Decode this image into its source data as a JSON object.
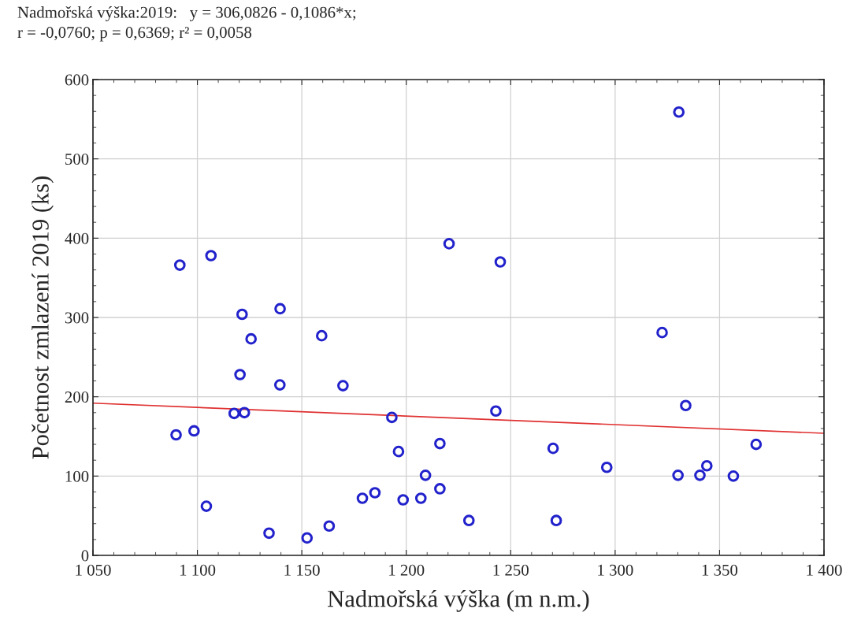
{
  "chart_data": {
    "type": "scatter",
    "title": "Nadmořská výška:2019:   y = 306,0826 - 0,1086*x;\nr = -0,0760; p = 0,6369; r² = 0,0058",
    "xlabel": "Nadmořská výška (m n.m.)",
    "ylabel": "Početnost zmlazení 2019 (ks)",
    "series": [
      {
        "color": "#2222cc",
        "marker": "circle",
        "x": [
          1091.6,
          1106.5,
          1121.4,
          1139.6,
          1125.7,
          1159.5,
          1120.4,
          1139.5,
          1169.7,
          1117.6,
          1122.5,
          1089.8,
          1098.4,
          1104.3,
          1134.3,
          1152.5,
          1163.1,
          1179,
          1185,
          1193.1,
          1196.3,
          1198.5,
          1207,
          1209.2,
          1216.1,
          1216.1,
          1220.5,
          1230,
          1242.9,
          1245,
          1270.3,
          1271.8,
          1296,
          1322.5,
          1330.5,
          1333.8,
          1367.5,
          1330.1,
          1340.6,
          1343.9,
          1356.6
        ],
        "values": [
          366,
          378,
          304,
          311,
          273,
          277,
          228,
          215,
          214,
          179,
          180,
          152,
          157,
          62,
          28,
          22,
          37,
          72,
          79,
          174,
          131,
          70,
          72,
          101,
          141,
          84,
          393,
          44,
          182,
          370,
          135,
          44,
          111,
          281,
          559,
          189,
          140,
          101,
          101,
          113,
          100
        ]
      },
      {
        "type": "line",
        "color": "#e03030",
        "line_style": "solid",
        "marker": "none",
        "x": [
          1050,
          1400
        ],
        "values": [
          192,
          154
        ]
      }
    ],
    "xlim": [
      1050,
      1400
    ],
    "xticks": [
      {
        "value": 1050,
        "label": "1 050"
      },
      {
        "value": 1100,
        "label": "1 100"
      },
      {
        "value": 1150,
        "label": "1 150"
      },
      {
        "value": 1200,
        "label": "1 200"
      },
      {
        "value": 1250,
        "label": "1 250"
      },
      {
        "value": 1300,
        "label": "1 300"
      },
      {
        "value": 1350,
        "label": "1 350"
      },
      {
        "value": 1400,
        "label": "1 400"
      }
    ],
    "ylim": [
      0,
      600
    ],
    "yticks": [
      0,
      100,
      200,
      300,
      400,
      500,
      600
    ],
    "grid": true
  }
}
